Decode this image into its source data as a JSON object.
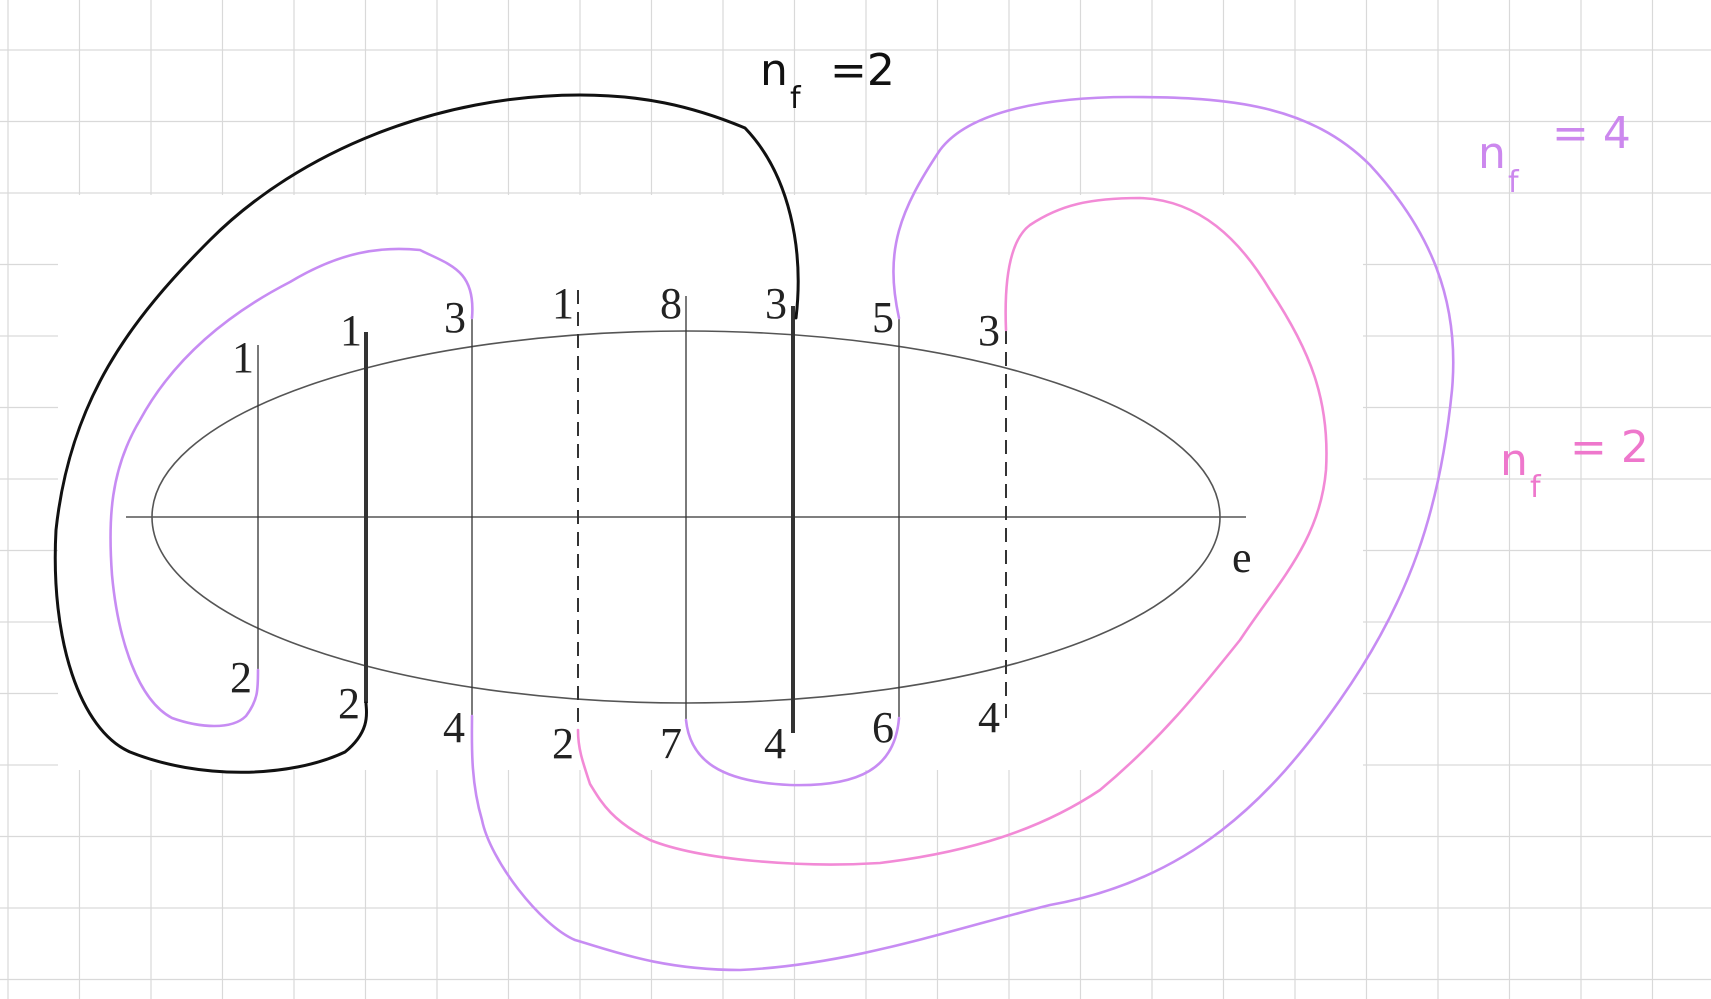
{
  "diagram": {
    "axis_label": "e",
    "top_labels": [
      "1",
      "1",
      "3",
      "1",
      "8",
      "3",
      "5",
      "3"
    ],
    "bottom_labels": [
      "2",
      "2",
      "4",
      "2",
      "7",
      "4",
      "6",
      "4"
    ],
    "annotations": [
      {
        "n": "n",
        "sub": "f",
        "value": "=2",
        "color": "#111111"
      },
      {
        "n": "n",
        "sub": "f",
        "value": "= 4",
        "color": "#cc88ee"
      },
      {
        "n": "n",
        "sub": "f",
        "value": "= 2",
        "color": "#ee77cc"
      }
    ]
  },
  "colors": {
    "grid": "#d9d9d9",
    "ellipse": "#555555",
    "black_curve": "#111111",
    "purple_curve": "#c78cf3",
    "pink_curve": "#f28ad6"
  }
}
